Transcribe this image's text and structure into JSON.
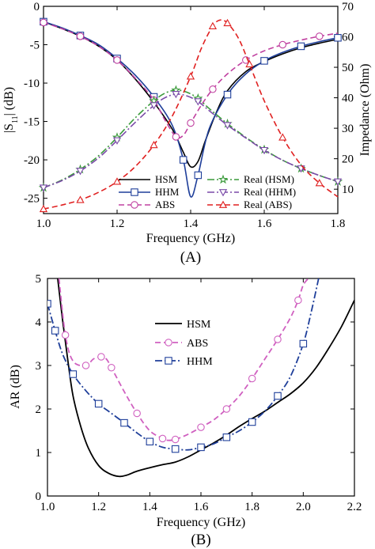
{
  "chart_data": [
    {
      "panel": "(A)",
      "type": "line",
      "xlabel": "Frequency (GHz)",
      "ylabel_left": "|S11| (dB)",
      "ylabel_right": "Impedance (Ohm)",
      "xlim": [
        1.0,
        1.8
      ],
      "ylim_left": [
        -27,
        0
      ],
      "ylim_right": [
        2,
        70
      ],
      "x_ticks": [
        "1.0",
        "1.2",
        "1.4",
        "1.6",
        "1.8"
      ],
      "y_left_ticks": [
        "0",
        "-5",
        "-10",
        "-15",
        "-20",
        "-25"
      ],
      "y_right_ticks": [
        "10",
        "20",
        "30",
        "40",
        "50",
        "60",
        "70"
      ],
      "legend_position": "bottom-center",
      "series": [
        {
          "name": "HSM",
          "axis": "left",
          "color": "#000000",
          "dash": "solid",
          "marker": "none",
          "x": [
            1.0,
            1.05,
            1.1,
            1.15,
            1.2,
            1.25,
            1.3,
            1.35,
            1.38,
            1.4,
            1.42,
            1.44,
            1.47,
            1.5,
            1.55,
            1.6,
            1.65,
            1.7,
            1.75,
            1.8
          ],
          "y": [
            -2.0,
            -2.9,
            -3.9,
            -5.2,
            -7.0,
            -9.5,
            -12.5,
            -16.0,
            -19.0,
            -20.9,
            -20.2,
            -17.5,
            -13.8,
            -11.0,
            -8.5,
            -7.2,
            -6.2,
            -5.4,
            -4.8,
            -4.3
          ]
        },
        {
          "name": "HHM",
          "axis": "left",
          "color": "#1f3f9a",
          "dash": "solid",
          "marker": "square",
          "x": [
            1.0,
            1.05,
            1.1,
            1.15,
            1.2,
            1.25,
            1.3,
            1.35,
            1.38,
            1.4,
            1.42,
            1.45,
            1.5,
            1.55,
            1.6,
            1.65,
            1.7,
            1.75,
            1.8
          ],
          "y": [
            -2.0,
            -2.8,
            -3.8,
            -5.0,
            -6.8,
            -9.0,
            -11.8,
            -15.5,
            -20.0,
            -24.8,
            -22.0,
            -16.0,
            -11.5,
            -8.8,
            -7.1,
            -6.0,
            -5.2,
            -4.6,
            -4.1
          ]
        },
        {
          "name": "ABS",
          "axis": "left",
          "color": "#c040a0",
          "dash": "dash",
          "marker": "circle",
          "x": [
            1.0,
            1.05,
            1.1,
            1.15,
            1.2,
            1.25,
            1.3,
            1.33,
            1.36,
            1.38,
            1.4,
            1.43,
            1.46,
            1.5,
            1.55,
            1.6,
            1.65,
            1.7,
            1.75,
            1.8
          ],
          "y": [
            -2.1,
            -2.9,
            -3.9,
            -5.2,
            -7.0,
            -9.4,
            -12.2,
            -14.8,
            -17.0,
            -16.8,
            -15.2,
            -12.8,
            -10.8,
            -8.8,
            -7.0,
            -5.8,
            -5.0,
            -4.4,
            -3.9,
            -3.5
          ]
        },
        {
          "name": "Real (HSM)",
          "axis": "right",
          "color": "#3a9a3a",
          "dash": "dashdot",
          "marker": "star",
          "x": [
            1.0,
            1.05,
            1.1,
            1.15,
            1.2,
            1.25,
            1.3,
            1.33,
            1.36,
            1.39,
            1.42,
            1.45,
            1.5,
            1.55,
            1.6,
            1.65,
            1.7,
            1.75,
            1.8
          ],
          "y": [
            10.5,
            13.0,
            16.5,
            21.0,
            27.0,
            33.5,
            39.0,
            41.5,
            42.5,
            41.8,
            39.8,
            36.5,
            31.5,
            27.0,
            23.0,
            19.5,
            16.8,
            14.5,
            12.5
          ]
        },
        {
          "name": "Real (HHM)",
          "axis": "right",
          "color": "#7a4aa8",
          "dash": "dashdot",
          "marker": "triangle-down",
          "x": [
            1.0,
            1.05,
            1.1,
            1.15,
            1.2,
            1.25,
            1.3,
            1.33,
            1.36,
            1.39,
            1.42,
            1.45,
            1.5,
            1.55,
            1.6,
            1.65,
            1.7,
            1.75,
            1.8
          ],
          "y": [
            10.5,
            12.8,
            16.0,
            20.3,
            26.0,
            32.0,
            37.5,
            40.0,
            41.2,
            40.6,
            38.8,
            35.8,
            31.0,
            26.8,
            22.8,
            19.5,
            16.8,
            14.5,
            12.5
          ]
        },
        {
          "name": "Real (ABS)",
          "axis": "right",
          "color": "#e02020",
          "dash": "dash",
          "marker": "triangle-up",
          "x": [
            1.0,
            1.05,
            1.1,
            1.15,
            1.2,
            1.25,
            1.3,
            1.35,
            1.4,
            1.43,
            1.46,
            1.48,
            1.5,
            1.53,
            1.56,
            1.6,
            1.65,
            1.7,
            1.75,
            1.8
          ],
          "y": [
            3.5,
            4.8,
            6.5,
            9.0,
            12.5,
            17.5,
            24.5,
            34.0,
            47.0,
            56.5,
            63.5,
            65.5,
            64.5,
            59.5,
            51.0,
            39.0,
            27.0,
            18.0,
            12.0,
            7.5
          ]
        }
      ]
    },
    {
      "panel": "(B)",
      "type": "line",
      "xlabel": "Frequency (GHz)",
      "ylabel": "AR (dB)",
      "xlim": [
        1.0,
        2.2
      ],
      "ylim": [
        0,
        5
      ],
      "x_ticks": [
        "1.0",
        "1.2",
        "1.4",
        "1.6",
        "1.8",
        "2.0",
        "2.2"
      ],
      "y_ticks": [
        "0",
        "1",
        "2",
        "3",
        "4",
        "5"
      ],
      "legend_position": "upper-center",
      "series": [
        {
          "name": "HSM",
          "color": "#000000",
          "dash": "solid",
          "marker": "none",
          "x": [
            1.04,
            1.06,
            1.08,
            1.1,
            1.13,
            1.16,
            1.2,
            1.24,
            1.28,
            1.31,
            1.35,
            1.4,
            1.45,
            1.5,
            1.55,
            1.6,
            1.65,
            1.7,
            1.75,
            1.8,
            1.85,
            1.9,
            1.95,
            2.0,
            2.05,
            2.1,
            2.15,
            2.2
          ],
          "y": [
            5.0,
            4.0,
            3.1,
            2.3,
            1.6,
            1.1,
            0.7,
            0.52,
            0.45,
            0.48,
            0.57,
            0.65,
            0.72,
            0.78,
            0.9,
            1.06,
            1.22,
            1.4,
            1.6,
            1.78,
            1.95,
            2.15,
            2.35,
            2.6,
            2.95,
            3.4,
            3.9,
            4.5
          ]
        },
        {
          "name": "ABS",
          "color": "#d060c0",
          "dash": "dash",
          "marker": "circle",
          "x": [
            1.045,
            1.07,
            1.1,
            1.15,
            1.18,
            1.21,
            1.23,
            1.25,
            1.3,
            1.35,
            1.4,
            1.45,
            1.47,
            1.5,
            1.55,
            1.6,
            1.65,
            1.7,
            1.75,
            1.8,
            1.85,
            1.9,
            1.95,
            1.98,
            2.0,
            2.02
          ],
          "y": [
            5.0,
            3.7,
            3.1,
            3.0,
            3.15,
            3.2,
            3.15,
            2.95,
            2.4,
            1.9,
            1.5,
            1.32,
            1.28,
            1.3,
            1.42,
            1.58,
            1.75,
            2.0,
            2.3,
            2.7,
            3.15,
            3.6,
            4.1,
            4.5,
            4.85,
            5.0
          ]
        },
        {
          "name": "HHM",
          "color": "#1f3f9a",
          "dash": "dashdot",
          "marker": "square",
          "x": [
            1.0,
            1.03,
            1.06,
            1.1,
            1.15,
            1.2,
            1.25,
            1.3,
            1.35,
            1.4,
            1.45,
            1.5,
            1.55,
            1.6,
            1.65,
            1.7,
            1.75,
            1.8,
            1.85,
            1.9,
            1.95,
            2.0,
            2.03,
            2.06
          ],
          "y": [
            4.42,
            3.8,
            3.25,
            2.8,
            2.42,
            2.12,
            1.9,
            1.68,
            1.45,
            1.25,
            1.12,
            1.08,
            1.06,
            1.12,
            1.2,
            1.35,
            1.5,
            1.7,
            1.95,
            2.3,
            2.75,
            3.5,
            4.2,
            5.0
          ]
        }
      ]
    }
  ]
}
